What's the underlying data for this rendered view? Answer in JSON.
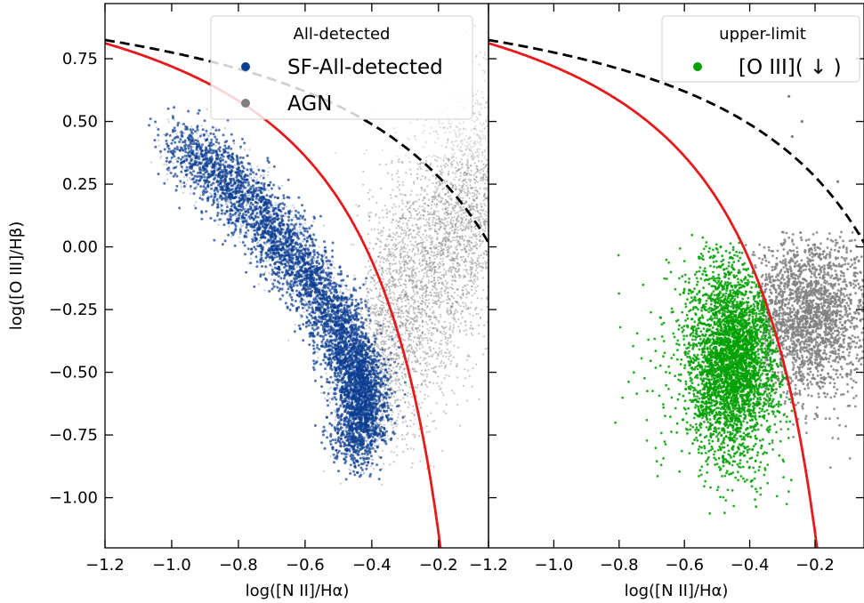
{
  "chart_data": [
    {
      "type": "scatter",
      "panel": "left",
      "xlabel": "log([N II]/Hα)",
      "ylabel": "log([O III]/Hβ)",
      "xlim": [
        -1.2,
        -0.05
      ],
      "ylim": [
        -1.2,
        0.97
      ],
      "xticks": [
        -1.2,
        -1.0,
        -0.8,
        -0.6,
        -0.4,
        -0.2
      ],
      "xtick_labels": [
        "−1.2",
        "−1.0",
        "−0.8",
        "−0.6",
        "−0.4",
        "−0.2"
      ],
      "yticks": [
        -1.0,
        -0.75,
        -0.5,
        -0.25,
        0.0,
        0.25,
        0.5,
        0.75
      ],
      "ytick_labels": [
        "−1.00",
        "−0.75",
        "−0.50",
        "−0.25",
        "0.00",
        "0.25",
        "0.50",
        "0.75"
      ],
      "legend": {
        "title": "All-detected",
        "placement": "top-right",
        "entries": [
          {
            "label": "SF-All-detected",
            "color": "#0b3d91"
          },
          {
            "label": "AGN",
            "color": "#808080"
          }
        ]
      },
      "series": [
        {
          "name": "SF-All-detected",
          "color": "#0b3d91",
          "kind": "point-cloud",
          "ridge": [
            [
              -1.0,
              0.42
            ],
            [
              -0.9,
              0.34
            ],
            [
              -0.8,
              0.22
            ],
            [
              -0.7,
              0.07
            ],
            [
              -0.6,
              -0.1
            ],
            [
              -0.5,
              -0.3
            ],
            [
              -0.45,
              -0.48
            ],
            [
              -0.42,
              -0.62
            ],
            [
              -0.45,
              -0.8
            ]
          ],
          "x_extent": [
            -1.05,
            -0.32
          ],
          "y_extent": [
            -1.15,
            0.45
          ]
        },
        {
          "name": "AGN",
          "color": "#808080",
          "kind": "point-cloud",
          "ridge": [
            [
              -0.4,
              -0.45
            ],
            [
              -0.3,
              -0.15
            ],
            [
              -0.2,
              0.1
            ],
            [
              -0.1,
              0.3
            ]
          ],
          "x_extent": [
            -0.45,
            -0.05
          ],
          "y_extent": [
            -0.8,
            0.97
          ]
        }
      ],
      "curves": [
        {
          "kind": "kauffmann03",
          "color": "#e8191b",
          "style": "solid",
          "equation": "0.61/(x-0.05)+1.3"
        },
        {
          "kind": "kewley01",
          "color": "#000000",
          "style": "dashed",
          "equation": "0.61/(x-0.47)+1.19"
        }
      ]
    },
    {
      "type": "scatter",
      "panel": "right",
      "xlabel": "log([N II]/Hα)",
      "ylabel": "",
      "xlim": [
        -1.2,
        -0.05
      ],
      "ylim": [
        -1.2,
        0.97
      ],
      "xticks": [
        -1.2,
        -1.0,
        -0.8,
        -0.6,
        -0.4,
        -0.2
      ],
      "xtick_labels": [
        "−1.2",
        "−1.0",
        "−0.8",
        "−0.6",
        "−0.4",
        "−0.2"
      ],
      "legend": {
        "title": "upper-limit",
        "placement": "top-right",
        "entries": [
          {
            "label": "[O III]( ↓ )",
            "color": "#00a000"
          }
        ]
      },
      "series": [
        {
          "name": "[O III]( ↓ )",
          "color": "#00a000",
          "kind": "point-cloud",
          "center": [
            -0.45,
            -0.45
          ],
          "x_extent": [
            -0.93,
            -0.25
          ],
          "y_extent": [
            -1.1,
            0.05
          ]
        },
        {
          "name": "AGN",
          "color": "#808080",
          "kind": "point-cloud",
          "center": [
            -0.25,
            -0.3
          ],
          "x_extent": [
            -0.4,
            -0.05
          ],
          "y_extent": [
            -0.85,
            0.05
          ]
        }
      ],
      "curves": [
        {
          "kind": "kauffmann03",
          "color": "#e8191b",
          "style": "solid",
          "equation": "0.61/(x-0.05)+1.3"
        },
        {
          "kind": "kewley01",
          "color": "#000000",
          "style": "dashed",
          "equation": "0.61/(x-0.47)+1.19"
        }
      ]
    }
  ]
}
